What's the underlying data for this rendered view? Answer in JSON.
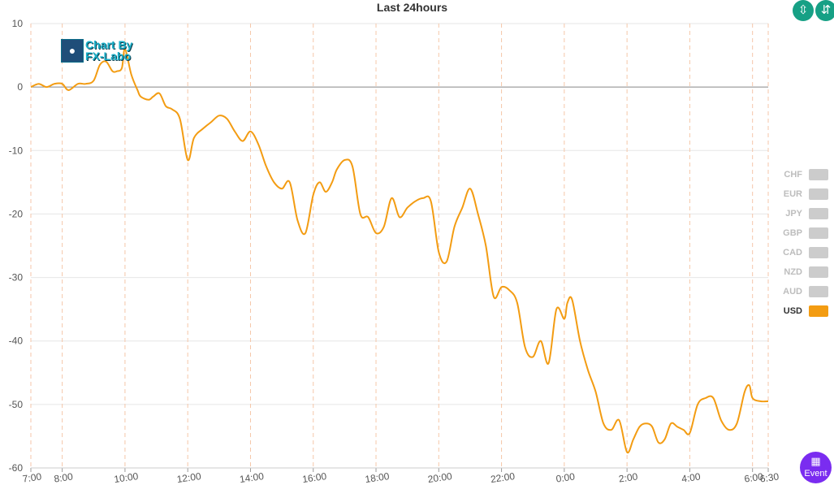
{
  "chart_data": {
    "type": "line",
    "title": "Last 24hours",
    "xlabel": "",
    "ylabel": "",
    "ylim": [
      -60,
      10
    ],
    "yticks": [
      10,
      0,
      -10,
      -20,
      -30,
      -40,
      -50,
      -60
    ],
    "xlim": [
      7.0,
      30.5
    ],
    "xticks": [
      {
        "x": 7,
        "label": "7:00"
      },
      {
        "x": 8,
        "label": "8:00"
      },
      {
        "x": 10,
        "label": "10:00"
      },
      {
        "x": 12,
        "label": "12:00"
      },
      {
        "x": 14,
        "label": "14:00"
      },
      {
        "x": 16,
        "label": "16:00"
      },
      {
        "x": 18,
        "label": "18:00"
      },
      {
        "x": 20,
        "label": "20:00"
      },
      {
        "x": 22,
        "label": "22:00"
      },
      {
        "x": 24,
        "label": "0:00"
      },
      {
        "x": 26,
        "label": "2:00"
      },
      {
        "x": 28,
        "label": "4:00"
      },
      {
        "x": 30,
        "label": "6:00"
      },
      {
        "x": 30.5,
        "label": "6:30"
      }
    ],
    "grid": true,
    "legend": "right",
    "series": [
      {
        "name": "USD",
        "color": "#f39c12",
        "x": [
          7.0,
          7.25,
          7.5,
          7.75,
          8.0,
          8.2,
          8.5,
          8.75,
          9.0,
          9.2,
          9.4,
          9.6,
          9.75,
          9.9,
          10.0,
          10.2,
          10.4,
          10.5,
          10.75,
          10.9,
          11.1,
          11.3,
          11.5,
          11.75,
          12.0,
          12.2,
          12.5,
          12.75,
          13.0,
          13.25,
          13.5,
          13.75,
          14.0,
          14.25,
          14.5,
          14.75,
          15.0,
          15.25,
          15.5,
          15.75,
          16.0,
          16.2,
          16.4,
          16.6,
          16.75,
          17.0,
          17.25,
          17.5,
          17.75,
          18.0,
          18.25,
          18.5,
          18.75,
          19.0,
          19.25,
          19.5,
          19.75,
          20.0,
          20.25,
          20.5,
          20.75,
          21.0,
          21.25,
          21.5,
          21.75,
          22.0,
          22.25,
          22.5,
          22.75,
          23.0,
          23.25,
          23.5,
          23.75,
          24.0,
          24.1,
          24.25,
          24.5,
          24.75,
          25.0,
          25.25,
          25.5,
          25.75,
          26.0,
          26.2,
          26.4,
          26.6,
          26.8,
          27.0,
          27.2,
          27.4,
          27.6,
          27.8,
          28.0,
          28.25,
          28.5,
          28.75,
          29.0,
          29.25,
          29.5,
          29.75,
          29.9,
          30.0,
          30.25,
          30.5
        ],
        "values": [
          0,
          0.5,
          0,
          0.5,
          0.5,
          -0.5,
          0.5,
          0.5,
          1.0,
          3.5,
          4.0,
          2.5,
          2.5,
          3.0,
          6.0,
          2.0,
          -0.5,
          -1.5,
          -2.0,
          -1.5,
          -1.0,
          -3.0,
          -3.5,
          -5.0,
          -11.5,
          -8.0,
          -6.5,
          -5.5,
          -4.5,
          -5.0,
          -7.0,
          -8.5,
          -7.0,
          -9.0,
          -12.5,
          -15.0,
          -16.0,
          -15.0,
          -21.0,
          -23.0,
          -17.0,
          -15.0,
          -16.5,
          -15.0,
          -13.0,
          -11.5,
          -12.5,
          -20.0,
          -20.5,
          -23.0,
          -22.0,
          -17.5,
          -20.5,
          -19.0,
          -18.0,
          -17.5,
          -18.0,
          -26.0,
          -27.5,
          -22.0,
          -19.0,
          -16.0,
          -20.0,
          -25.0,
          -33.0,
          -31.5,
          -32.0,
          -34.0,
          -41.0,
          -42.5,
          -40.0,
          -43.5,
          -35.0,
          -36.5,
          -34.0,
          -33.5,
          -40.0,
          -44.5,
          -48.0,
          -53.0,
          -54.0,
          -52.5,
          -57.5,
          -55.5,
          -53.5,
          -53.0,
          -53.5,
          -56.0,
          -55.5,
          -53.0,
          -53.5,
          -54.0,
          -54.5,
          -50.0,
          -49.0,
          -49.0,
          -52.5,
          -54.0,
          -53.0,
          -48.0,
          -47.0,
          -49.0,
          -49.5,
          -49.5
        ]
      }
    ],
    "legend_items": [
      {
        "name": "CHF",
        "active": false,
        "color": "#cccccc"
      },
      {
        "name": "EUR",
        "active": false,
        "color": "#cccccc"
      },
      {
        "name": "JPY",
        "active": false,
        "color": "#cccccc"
      },
      {
        "name": "GBP",
        "active": false,
        "color": "#cccccc"
      },
      {
        "name": "CAD",
        "active": false,
        "color": "#cccccc"
      },
      {
        "name": "NZD",
        "active": false,
        "color": "#cccccc"
      },
      {
        "name": "AUD",
        "active": false,
        "color": "#cccccc"
      },
      {
        "name": "USD",
        "active": true,
        "color": "#f39c12"
      }
    ]
  },
  "toolbar": {
    "collapse_icon": "collapse-vertical-icon",
    "expand_icon": "expand-vertical-icon"
  },
  "event_button": {
    "label": "Event",
    "icon": "calendar-icon"
  },
  "logo": {
    "line1": "Chart By",
    "line2": "FX-Labo"
  }
}
